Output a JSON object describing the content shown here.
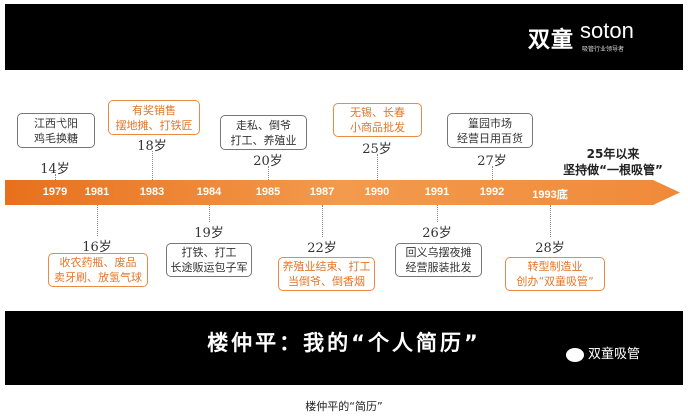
{
  "header": {
    "logo_cn": "双童",
    "logo_en": "soton",
    "logo_sub": "吸管行业领导者"
  },
  "timeline": {
    "years": [
      "1979",
      "1981",
      "1983",
      "1984",
      "1985",
      "1987",
      "1990",
      "1991",
      "1992",
      "1993底"
    ],
    "events": [
      {
        "age": "14岁",
        "lines": [
          "江西弋阳",
          "鸡毛换糖"
        ],
        "style": "gray"
      },
      {
        "age": "16岁",
        "lines": [
          "收农药瓶、废品",
          "卖牙刷、放氢气球"
        ],
        "style": "orange"
      },
      {
        "age": "18岁",
        "lines": [
          "有奖销售",
          "摆地摊、打铁匠"
        ],
        "style": "orange"
      },
      {
        "age": "19岁",
        "lines": [
          "打铁、打工",
          "长途贩运包子军"
        ],
        "style": "gray"
      },
      {
        "age": "20岁",
        "lines": [
          "走私、倒爷",
          "打工、养殖业"
        ],
        "style": "gray"
      },
      {
        "age": "22岁",
        "lines": [
          "养殖业结束、打工",
          "当倒爷、倒香烟"
        ],
        "style": "orange"
      },
      {
        "age": "25岁",
        "lines": [
          "无锡、长春",
          "小商品批发"
        ],
        "style": "orange"
      },
      {
        "age": "26岁",
        "lines": [
          "回义乌摆夜摊",
          "经营服装批发"
        ],
        "style": "gray"
      },
      {
        "age": "27岁",
        "lines": [
          "篁园市场",
          "经营日用百货"
        ],
        "style": "gray"
      },
      {
        "age": "28岁",
        "lines": [
          "转型制造业",
          "创办“双童吸管”"
        ],
        "style": "orange"
      }
    ],
    "motto": [
      "25年以来",
      "坚持做“一根吸管”"
    ]
  },
  "footer": {
    "title": "楼仲平：我的“个人简历”",
    "wechat": "双童吸管"
  },
  "caption": "楼仲平的“简历”",
  "colors": {
    "accent": "#ec8a43",
    "band": "#000000"
  }
}
